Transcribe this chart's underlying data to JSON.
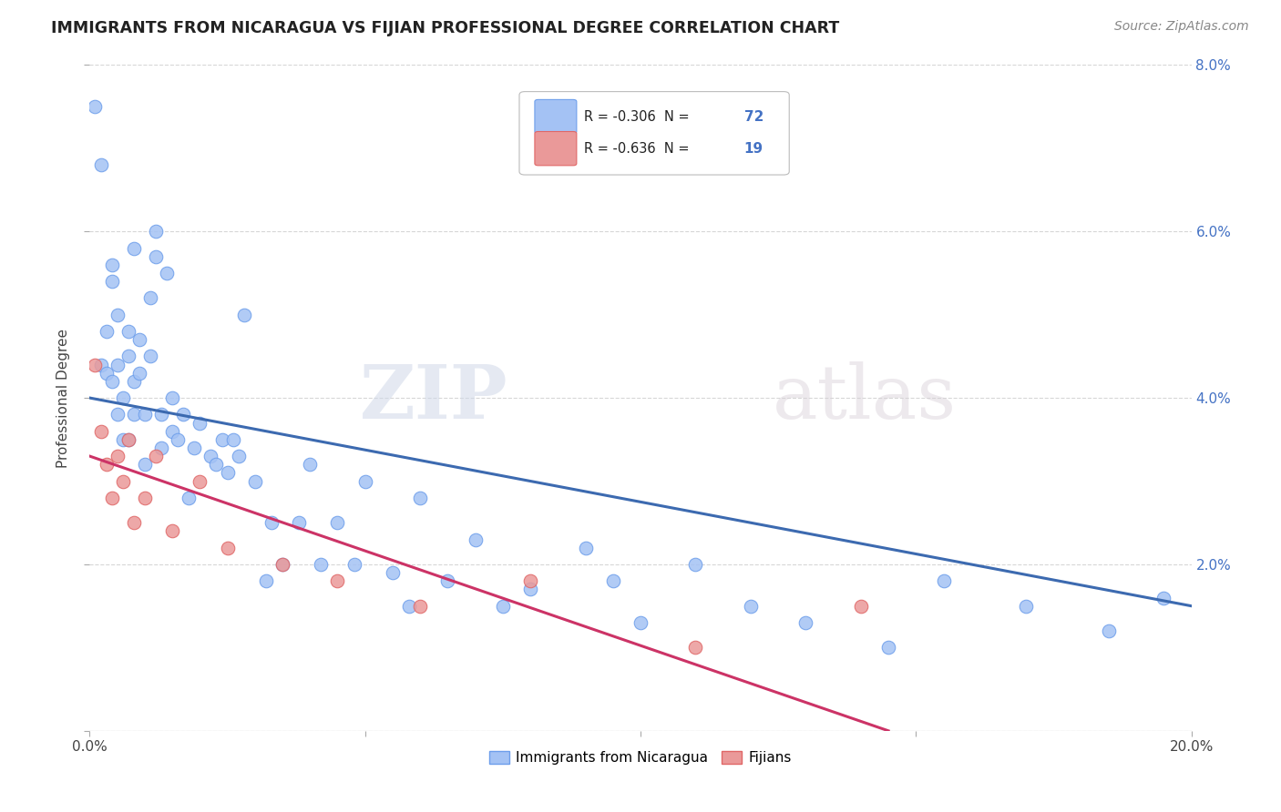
{
  "title": "IMMIGRANTS FROM NICARAGUA VS FIJIAN PROFESSIONAL DEGREE CORRELATION CHART",
  "source": "Source: ZipAtlas.com",
  "ylabel": "Professional Degree",
  "xlim": [
    0.0,
    0.2
  ],
  "ylim": [
    0.0,
    0.08
  ],
  "xticks": [
    0.0,
    0.05,
    0.1,
    0.15,
    0.2
  ],
  "yticks": [
    0.0,
    0.02,
    0.04,
    0.06,
    0.08
  ],
  "xtick_labels": [
    "0.0%",
    "",
    "",
    "",
    "20.0%"
  ],
  "ytick_labels_right": [
    "",
    "2.0%",
    "4.0%",
    "6.0%",
    "8.0%"
  ],
  "nicaragua_color": "#a4c2f4",
  "fijian_color": "#ea9999",
  "nicaragua_edge": "#6d9eeb",
  "fijian_edge": "#e06666",
  "blue_line_color": "#3c6ab0",
  "pink_line_color": "#cc3366",
  "legend_label1": "Immigrants from Nicaragua",
  "legend_label2": "Fijians",
  "watermark_zip": "ZIP",
  "watermark_atlas": "atlas",
  "nic_x": [
    0.001,
    0.002,
    0.002,
    0.003,
    0.003,
    0.004,
    0.004,
    0.004,
    0.005,
    0.005,
    0.005,
    0.006,
    0.006,
    0.007,
    0.007,
    0.007,
    0.008,
    0.008,
    0.008,
    0.009,
    0.009,
    0.01,
    0.01,
    0.011,
    0.011,
    0.012,
    0.012,
    0.013,
    0.013,
    0.014,
    0.015,
    0.015,
    0.016,
    0.017,
    0.018,
    0.019,
    0.02,
    0.022,
    0.023,
    0.024,
    0.025,
    0.026,
    0.027,
    0.028,
    0.03,
    0.032,
    0.033,
    0.035,
    0.038,
    0.04,
    0.042,
    0.045,
    0.048,
    0.05,
    0.055,
    0.058,
    0.06,
    0.065,
    0.07,
    0.075,
    0.08,
    0.09,
    0.095,
    0.1,
    0.11,
    0.12,
    0.13,
    0.145,
    0.155,
    0.17,
    0.185,
    0.195
  ],
  "nic_y": [
    0.075,
    0.068,
    0.044,
    0.048,
    0.043,
    0.054,
    0.056,
    0.042,
    0.044,
    0.05,
    0.038,
    0.035,
    0.04,
    0.045,
    0.048,
    0.035,
    0.042,
    0.038,
    0.058,
    0.047,
    0.043,
    0.032,
    0.038,
    0.045,
    0.052,
    0.06,
    0.057,
    0.038,
    0.034,
    0.055,
    0.036,
    0.04,
    0.035,
    0.038,
    0.028,
    0.034,
    0.037,
    0.033,
    0.032,
    0.035,
    0.031,
    0.035,
    0.033,
    0.05,
    0.03,
    0.018,
    0.025,
    0.02,
    0.025,
    0.032,
    0.02,
    0.025,
    0.02,
    0.03,
    0.019,
    0.015,
    0.028,
    0.018,
    0.023,
    0.015,
    0.017,
    0.022,
    0.018,
    0.013,
    0.02,
    0.015,
    0.013,
    0.01,
    0.018,
    0.015,
    0.012,
    0.016
  ],
  "fij_x": [
    0.001,
    0.002,
    0.003,
    0.004,
    0.005,
    0.006,
    0.007,
    0.008,
    0.01,
    0.012,
    0.015,
    0.02,
    0.025,
    0.035,
    0.045,
    0.06,
    0.08,
    0.11,
    0.14
  ],
  "fij_y": [
    0.044,
    0.036,
    0.032,
    0.028,
    0.033,
    0.03,
    0.035,
    0.025,
    0.028,
    0.033,
    0.024,
    0.03,
    0.022,
    0.02,
    0.018,
    0.015,
    0.018,
    0.01,
    0.015
  ],
  "nic_line_x0": 0.0,
  "nic_line_y0": 0.04,
  "nic_line_x1": 0.2,
  "nic_line_y1": 0.015,
  "fij_line_x0": 0.0,
  "fij_line_y0": 0.033,
  "fij_line_x1": 0.145,
  "fij_line_y1": 0.0
}
